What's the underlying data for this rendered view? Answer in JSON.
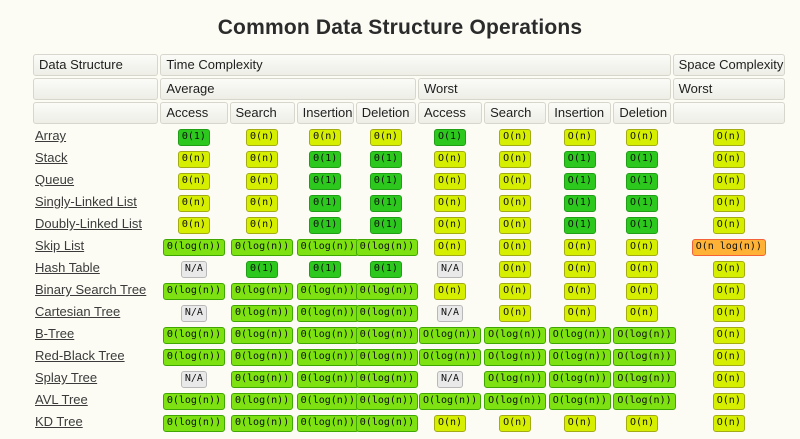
{
  "title": "Common Data Structure Operations",
  "theme": {
    "page_bg": "#fcfcf4",
    "link_color": "#3b3b3b",
    "header_cell_bg": "#f3f3ec",
    "header_cell_border": "#d6d6cc"
  },
  "badge_colors": {
    "green": {
      "bg": "#2dc81e",
      "border": "#1f9e16"
    },
    "lightgreen": {
      "bg": "#7de112",
      "border": "#3fa602"
    },
    "yellow": {
      "bg": "#d6ee00",
      "border": "#a3ad13"
    },
    "orange": {
      "bg": "#ffb235",
      "border": "#f4623a"
    },
    "gray": {
      "bg": "#e9e9e9",
      "border": "#b8b8b8"
    }
  },
  "table": {
    "headers": {
      "data_structure": "Data Structure",
      "time_complexity": "Time Complexity",
      "space_complexity": "Space Complexity",
      "average": "Average",
      "worst_time": "Worst",
      "worst_space": "Worst",
      "ops": [
        "Access",
        "Search",
        "Insertion",
        "Deletion",
        "Access",
        "Search",
        "Insertion",
        "Deletion"
      ]
    },
    "rows": [
      {
        "name": "Array",
        "cells": [
          {
            "t": "Θ(1)",
            "c": "green"
          },
          {
            "t": "Θ(n)",
            "c": "yellow"
          },
          {
            "t": "Θ(n)",
            "c": "yellow"
          },
          {
            "t": "Θ(n)",
            "c": "yellow"
          },
          {
            "t": "O(1)",
            "c": "green"
          },
          {
            "t": "O(n)",
            "c": "yellow"
          },
          {
            "t": "O(n)",
            "c": "yellow"
          },
          {
            "t": "O(n)",
            "c": "yellow"
          },
          {
            "t": "O(n)",
            "c": "yellow"
          }
        ]
      },
      {
        "name": "Stack",
        "cells": [
          {
            "t": "Θ(n)",
            "c": "yellow"
          },
          {
            "t": "Θ(n)",
            "c": "yellow"
          },
          {
            "t": "Θ(1)",
            "c": "green"
          },
          {
            "t": "Θ(1)",
            "c": "green"
          },
          {
            "t": "O(n)",
            "c": "yellow"
          },
          {
            "t": "O(n)",
            "c": "yellow"
          },
          {
            "t": "O(1)",
            "c": "green"
          },
          {
            "t": "O(1)",
            "c": "green"
          },
          {
            "t": "O(n)",
            "c": "yellow"
          }
        ]
      },
      {
        "name": "Queue",
        "cells": [
          {
            "t": "Θ(n)",
            "c": "yellow"
          },
          {
            "t": "Θ(n)",
            "c": "yellow"
          },
          {
            "t": "Θ(1)",
            "c": "green"
          },
          {
            "t": "Θ(1)",
            "c": "green"
          },
          {
            "t": "O(n)",
            "c": "yellow"
          },
          {
            "t": "O(n)",
            "c": "yellow"
          },
          {
            "t": "O(1)",
            "c": "green"
          },
          {
            "t": "O(1)",
            "c": "green"
          },
          {
            "t": "O(n)",
            "c": "yellow"
          }
        ]
      },
      {
        "name": "Singly-Linked List",
        "cells": [
          {
            "t": "Θ(n)",
            "c": "yellow"
          },
          {
            "t": "Θ(n)",
            "c": "yellow"
          },
          {
            "t": "Θ(1)",
            "c": "green"
          },
          {
            "t": "Θ(1)",
            "c": "green"
          },
          {
            "t": "O(n)",
            "c": "yellow"
          },
          {
            "t": "O(n)",
            "c": "yellow"
          },
          {
            "t": "O(1)",
            "c": "green"
          },
          {
            "t": "O(1)",
            "c": "green"
          },
          {
            "t": "O(n)",
            "c": "yellow"
          }
        ]
      },
      {
        "name": "Doubly-Linked List",
        "cells": [
          {
            "t": "Θ(n)",
            "c": "yellow"
          },
          {
            "t": "Θ(n)",
            "c": "yellow"
          },
          {
            "t": "Θ(1)",
            "c": "green"
          },
          {
            "t": "Θ(1)",
            "c": "green"
          },
          {
            "t": "O(n)",
            "c": "yellow"
          },
          {
            "t": "O(n)",
            "c": "yellow"
          },
          {
            "t": "O(1)",
            "c": "green"
          },
          {
            "t": "O(1)",
            "c": "green"
          },
          {
            "t": "O(n)",
            "c": "yellow"
          }
        ]
      },
      {
        "name": "Skip List",
        "cells": [
          {
            "t": "Θ(log(n))",
            "c": "lightgreen"
          },
          {
            "t": "Θ(log(n))",
            "c": "lightgreen"
          },
          {
            "t": "Θ(log(n))",
            "c": "lightgreen"
          },
          {
            "t": "Θ(log(n))",
            "c": "lightgreen"
          },
          {
            "t": "O(n)",
            "c": "yellow"
          },
          {
            "t": "O(n)",
            "c": "yellow"
          },
          {
            "t": "O(n)",
            "c": "yellow"
          },
          {
            "t": "O(n)",
            "c": "yellow"
          },
          {
            "t": "O(n log(n))",
            "c": "orange"
          }
        ]
      },
      {
        "name": "Hash Table",
        "cells": [
          {
            "t": "N/A",
            "c": "gray"
          },
          {
            "t": "Θ(1)",
            "c": "green"
          },
          {
            "t": "Θ(1)",
            "c": "green"
          },
          {
            "t": "Θ(1)",
            "c": "green"
          },
          {
            "t": "N/A",
            "c": "gray"
          },
          {
            "t": "O(n)",
            "c": "yellow"
          },
          {
            "t": "O(n)",
            "c": "yellow"
          },
          {
            "t": "O(n)",
            "c": "yellow"
          },
          {
            "t": "O(n)",
            "c": "yellow"
          }
        ]
      },
      {
        "name": "Binary Search Tree",
        "cells": [
          {
            "t": "Θ(log(n))",
            "c": "lightgreen"
          },
          {
            "t": "Θ(log(n))",
            "c": "lightgreen"
          },
          {
            "t": "Θ(log(n))",
            "c": "lightgreen"
          },
          {
            "t": "Θ(log(n))",
            "c": "lightgreen"
          },
          {
            "t": "O(n)",
            "c": "yellow"
          },
          {
            "t": "O(n)",
            "c": "yellow"
          },
          {
            "t": "O(n)",
            "c": "yellow"
          },
          {
            "t": "O(n)",
            "c": "yellow"
          },
          {
            "t": "O(n)",
            "c": "yellow"
          }
        ]
      },
      {
        "name": "Cartesian Tree",
        "cells": [
          {
            "t": "N/A",
            "c": "gray"
          },
          {
            "t": "Θ(log(n))",
            "c": "lightgreen"
          },
          {
            "t": "Θ(log(n))",
            "c": "lightgreen"
          },
          {
            "t": "Θ(log(n))",
            "c": "lightgreen"
          },
          {
            "t": "N/A",
            "c": "gray"
          },
          {
            "t": "O(n)",
            "c": "yellow"
          },
          {
            "t": "O(n)",
            "c": "yellow"
          },
          {
            "t": "O(n)",
            "c": "yellow"
          },
          {
            "t": "O(n)",
            "c": "yellow"
          }
        ]
      },
      {
        "name": "B-Tree",
        "cells": [
          {
            "t": "Θ(log(n))",
            "c": "lightgreen"
          },
          {
            "t": "Θ(log(n))",
            "c": "lightgreen"
          },
          {
            "t": "Θ(log(n))",
            "c": "lightgreen"
          },
          {
            "t": "Θ(log(n))",
            "c": "lightgreen"
          },
          {
            "t": "O(log(n))",
            "c": "lightgreen"
          },
          {
            "t": "O(log(n))",
            "c": "lightgreen"
          },
          {
            "t": "O(log(n))",
            "c": "lightgreen"
          },
          {
            "t": "O(log(n))",
            "c": "lightgreen"
          },
          {
            "t": "O(n)",
            "c": "yellow"
          }
        ]
      },
      {
        "name": "Red-Black Tree",
        "cells": [
          {
            "t": "Θ(log(n))",
            "c": "lightgreen"
          },
          {
            "t": "Θ(log(n))",
            "c": "lightgreen"
          },
          {
            "t": "Θ(log(n))",
            "c": "lightgreen"
          },
          {
            "t": "Θ(log(n))",
            "c": "lightgreen"
          },
          {
            "t": "O(log(n))",
            "c": "lightgreen"
          },
          {
            "t": "O(log(n))",
            "c": "lightgreen"
          },
          {
            "t": "O(log(n))",
            "c": "lightgreen"
          },
          {
            "t": "O(log(n))",
            "c": "lightgreen"
          },
          {
            "t": "O(n)",
            "c": "yellow"
          }
        ]
      },
      {
        "name": "Splay Tree",
        "cells": [
          {
            "t": "N/A",
            "c": "gray"
          },
          {
            "t": "Θ(log(n))",
            "c": "lightgreen"
          },
          {
            "t": "Θ(log(n))",
            "c": "lightgreen"
          },
          {
            "t": "Θ(log(n))",
            "c": "lightgreen"
          },
          {
            "t": "N/A",
            "c": "gray"
          },
          {
            "t": "O(log(n))",
            "c": "lightgreen"
          },
          {
            "t": "O(log(n))",
            "c": "lightgreen"
          },
          {
            "t": "O(log(n))",
            "c": "lightgreen"
          },
          {
            "t": "O(n)",
            "c": "yellow"
          }
        ]
      },
      {
        "name": "AVL Tree",
        "cells": [
          {
            "t": "Θ(log(n))",
            "c": "lightgreen"
          },
          {
            "t": "Θ(log(n))",
            "c": "lightgreen"
          },
          {
            "t": "Θ(log(n))",
            "c": "lightgreen"
          },
          {
            "t": "Θ(log(n))",
            "c": "lightgreen"
          },
          {
            "t": "O(log(n))",
            "c": "lightgreen"
          },
          {
            "t": "O(log(n))",
            "c": "lightgreen"
          },
          {
            "t": "O(log(n))",
            "c": "lightgreen"
          },
          {
            "t": "O(log(n))",
            "c": "lightgreen"
          },
          {
            "t": "O(n)",
            "c": "yellow"
          }
        ]
      },
      {
        "name": "KD Tree",
        "cells": [
          {
            "t": "Θ(log(n))",
            "c": "lightgreen"
          },
          {
            "t": "Θ(log(n))",
            "c": "lightgreen"
          },
          {
            "t": "Θ(log(n))",
            "c": "lightgreen"
          },
          {
            "t": "Θ(log(n))",
            "c": "lightgreen"
          },
          {
            "t": "O(n)",
            "c": "yellow"
          },
          {
            "t": "O(n)",
            "c": "yellow"
          },
          {
            "t": "O(n)",
            "c": "yellow"
          },
          {
            "t": "O(n)",
            "c": "yellow"
          },
          {
            "t": "O(n)",
            "c": "yellow"
          }
        ]
      }
    ]
  }
}
